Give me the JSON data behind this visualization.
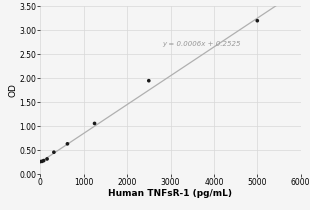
{
  "x_data": [
    0,
    39,
    78,
    156,
    313,
    625,
    1250,
    2500,
    5000
  ],
  "y_data": [
    0.265,
    0.27,
    0.285,
    0.32,
    0.46,
    0.635,
    1.06,
    1.95,
    3.2
  ],
  "slope": 0.0006,
  "intercept": 0.2525,
  "equation": "y = 0.0006x + 0.2525",
  "equation_x": 2800,
  "equation_y": 2.72,
  "xlabel": "Human TNFsR-1 (pg/mL)",
  "ylabel": "OD",
  "xlim": [
    0,
    6000
  ],
  "ylim": [
    0.0,
    3.5
  ],
  "xticks": [
    0,
    1000,
    2000,
    3000,
    4000,
    5000,
    6000
  ],
  "yticks": [
    0.0,
    0.5,
    1.0,
    1.5,
    2.0,
    2.5,
    3.0,
    3.5
  ],
  "line_color": "#b0b0b0",
  "marker_color": "#1a1a1a",
  "background_color": "#f5f5f5",
  "grid_color": "#d8d8d8",
  "equation_color": "#999999",
  "equation_fontsize": 5.0,
  "xlabel_fontsize": 6.5,
  "ylabel_fontsize": 6.5,
  "tick_fontsize": 5.5
}
